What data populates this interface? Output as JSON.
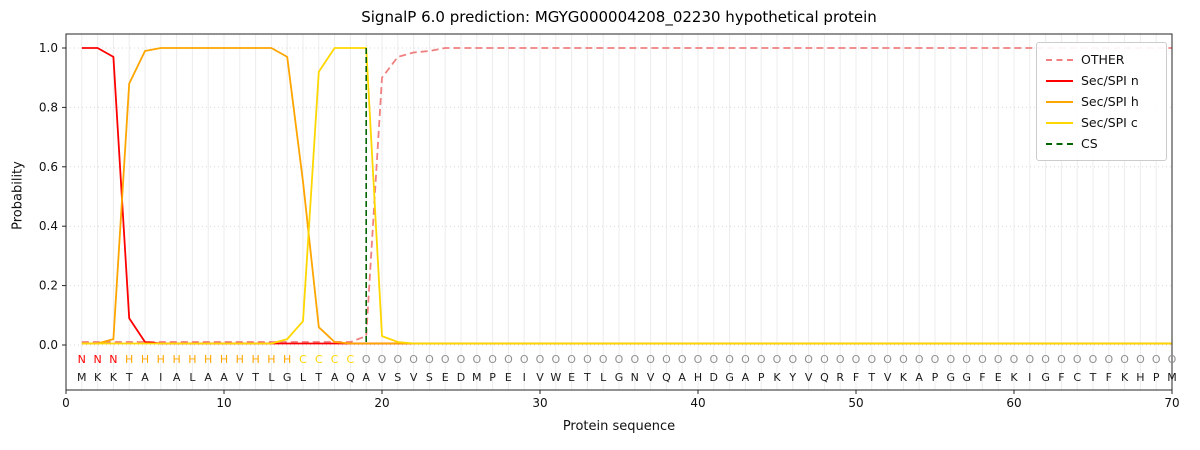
{
  "chart_data": {
    "type": "line",
    "title": "SignalP 6.0 prediction: MGYG000004208_02230 hypothetical protein",
    "xlabel": "Protein sequence",
    "ylabel": "Probability",
    "xlim": [
      0,
      70
    ],
    "ylim": [
      0.0,
      1.0
    ],
    "x_ticks": [
      0,
      10,
      20,
      30,
      40,
      50,
      60,
      70
    ],
    "y_ticks": [
      0.0,
      0.2,
      0.4,
      0.6,
      0.8,
      1.0
    ],
    "grid": true,
    "legend_position": "upper right",
    "sequence": "MKKTAIALAAVTLGLTAQAVSVSEDMPEIVWETLGNVQAHDGAPKYVQRFTVKAPGGFEKIGFCTFKHPM",
    "regions": [
      {
        "label": "N",
        "start": 1,
        "end": 3
      },
      {
        "label": "H",
        "start": 4,
        "end": 14
      },
      {
        "label": "C",
        "start": 15,
        "end": 18
      },
      {
        "label": "O",
        "start": 19,
        "end": 70
      }
    ],
    "label_colors": {
      "N": "#ff0000",
      "H": "#ffa500",
      "C": "#ffd700",
      "O": "#909090"
    },
    "sequence_color": "#1a1a1a",
    "series": [
      {
        "id": "other",
        "name": "OTHER",
        "color": "#f08080",
        "dash": true,
        "values": [
          0.01,
          0.01,
          0.01,
          0.01,
          0.01,
          0.01,
          0.01,
          0.01,
          0.01,
          0.01,
          0.01,
          0.01,
          0.01,
          0.01,
          0.01,
          0.01,
          0.01,
          0.01,
          0.03,
          0.9,
          0.97,
          0.985,
          0.99,
          1.0,
          1.0,
          1.0,
          1.0,
          1.0,
          1.0,
          1.0,
          1.0,
          1.0,
          1.0,
          1.0,
          1.0,
          1.0,
          1.0,
          1.0,
          1.0,
          1.0,
          1.0,
          1.0,
          1.0,
          1.0,
          1.0,
          1.0,
          1.0,
          1.0,
          1.0,
          1.0,
          1.0,
          1.0,
          1.0,
          1.0,
          1.0,
          1.0,
          1.0,
          1.0,
          1.0,
          1.0,
          1.0,
          1.0,
          1.0,
          1.0,
          1.0,
          1.0,
          1.0,
          1.0,
          1.0,
          1.0
        ]
      },
      {
        "id": "sec-spi-n",
        "name": "Sec/SPI n",
        "color": "#ff0000",
        "dash": false,
        "values": [
          1.0,
          1.0,
          0.97,
          0.09,
          0.01,
          0.005,
          0.005,
          0.005,
          0.005,
          0.005,
          0.005,
          0.005,
          0.005,
          0.005,
          0.005,
          0.005,
          0.005,
          0.005,
          0.005,
          0.005,
          0.005,
          0.005,
          0.005,
          0.005,
          0.005,
          0.005,
          0.005,
          0.005,
          0.005,
          0.005,
          0.005,
          0.005,
          0.005,
          0.005,
          0.005,
          0.005,
          0.005,
          0.005,
          0.005,
          0.005,
          0.005,
          0.005,
          0.005,
          0.005,
          0.005,
          0.005,
          0.005,
          0.005,
          0.005,
          0.005,
          0.005,
          0.005,
          0.005,
          0.005,
          0.005,
          0.005,
          0.005,
          0.005,
          0.005,
          0.005,
          0.005,
          0.005,
          0.005,
          0.005,
          0.005,
          0.005,
          0.005,
          0.005,
          0.005,
          0.005
        ]
      },
      {
        "id": "sec-spi-h",
        "name": "Sec/SPI h",
        "color": "#ffa500",
        "dash": false,
        "values": [
          0.005,
          0.005,
          0.02,
          0.88,
          0.99,
          1.0,
          1.0,
          1.0,
          1.0,
          1.0,
          1.0,
          1.0,
          1.0,
          0.97,
          0.55,
          0.06,
          0.01,
          0.005,
          0.005,
          0.005,
          0.005,
          0.005,
          0.005,
          0.005,
          0.005,
          0.005,
          0.005,
          0.005,
          0.005,
          0.005,
          0.005,
          0.005,
          0.005,
          0.005,
          0.005,
          0.005,
          0.005,
          0.005,
          0.005,
          0.005,
          0.005,
          0.005,
          0.005,
          0.005,
          0.005,
          0.005,
          0.005,
          0.005,
          0.005,
          0.005,
          0.005,
          0.005,
          0.005,
          0.005,
          0.005,
          0.005,
          0.005,
          0.005,
          0.005,
          0.005,
          0.005,
          0.005,
          0.005,
          0.005,
          0.005,
          0.005,
          0.005,
          0.005,
          0.005,
          0.005
        ]
      },
      {
        "id": "sec-spi-c",
        "name": "Sec/SPI c",
        "color": "#ffd700",
        "dash": false,
        "values": [
          0.005,
          0.005,
          0.005,
          0.005,
          0.005,
          0.005,
          0.005,
          0.005,
          0.005,
          0.005,
          0.005,
          0.005,
          0.005,
          0.02,
          0.08,
          0.92,
          1.0,
          1.0,
          1.0,
          0.03,
          0.01,
          0.005,
          0.005,
          0.005,
          0.005,
          0.005,
          0.005,
          0.005,
          0.005,
          0.005,
          0.005,
          0.005,
          0.005,
          0.005,
          0.005,
          0.005,
          0.005,
          0.005,
          0.005,
          0.005,
          0.005,
          0.005,
          0.005,
          0.005,
          0.005,
          0.005,
          0.005,
          0.005,
          0.005,
          0.005,
          0.005,
          0.005,
          0.005,
          0.005,
          0.005,
          0.005,
          0.005,
          0.005,
          0.005,
          0.005,
          0.005,
          0.005,
          0.005,
          0.005,
          0.005,
          0.005,
          0.005,
          0.005,
          0.005,
          0.005
        ]
      }
    ],
    "cs_marker": {
      "label": "CS",
      "position": 19,
      "color": "#006400",
      "dash": true
    }
  }
}
